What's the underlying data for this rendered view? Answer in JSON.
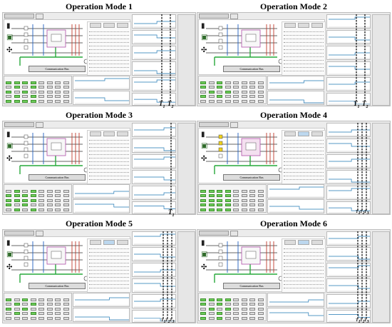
{
  "figure": {
    "modes": [
      {
        "title": "Operation Mode 1",
        "comm_label": "Communication Bus",
        "markers": [
          "T",
          "T"
        ],
        "marker_subs": [
          "1",
          "2"
        ]
      },
      {
        "title": "Operation Mode 2",
        "comm_label": "Communication Bus",
        "markers": [
          "T",
          "T"
        ],
        "marker_subs": [
          "1",
          "2"
        ]
      },
      {
        "title": "Operation Mode 3",
        "comm_label": "Communication Bus",
        "markers": [
          "T"
        ],
        "marker_subs": [
          "1"
        ]
      },
      {
        "title": "Operation Mode 4",
        "comm_label": "Communication Bus",
        "markers": [
          "T",
          "T",
          "T"
        ],
        "marker_subs": [
          "1",
          "2",
          "3"
        ]
      },
      {
        "title": "Operation Mode 5",
        "comm_label": "Communication Bus",
        "markers": [
          "T",
          "T",
          "T"
        ],
        "marker_subs": [
          "1",
          "2",
          "3"
        ]
      },
      {
        "title": "Operation Mode 6",
        "comm_label": "Communication Bus",
        "markers": [
          "T",
          "T",
          "T"
        ],
        "marker_subs": [
          "1",
          "2",
          "3"
        ]
      }
    ]
  }
}
